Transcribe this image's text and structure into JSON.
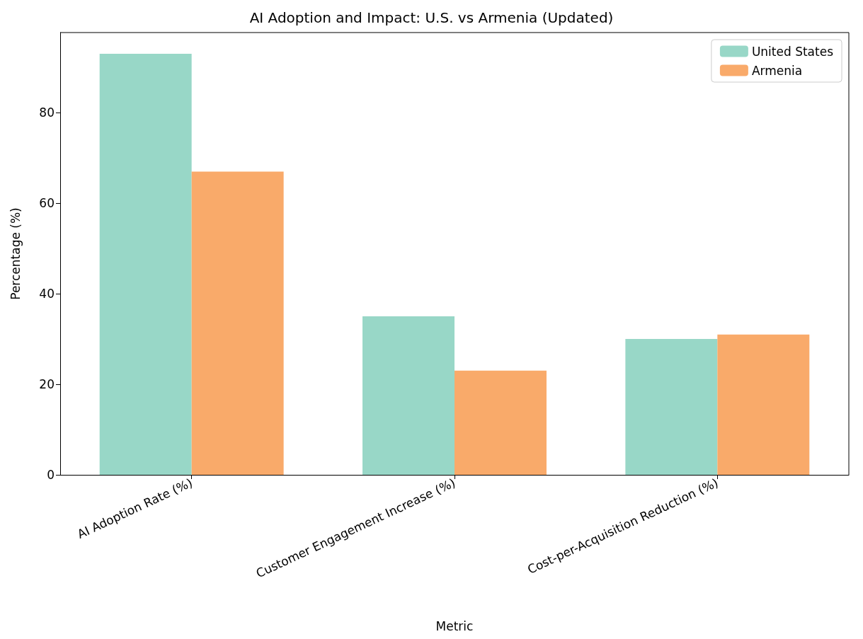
{
  "chart_data": {
    "type": "bar",
    "title": "AI Adoption and Impact: U.S. vs Armenia (Updated)",
    "xlabel": "Metric",
    "ylabel": "Percentage (%)",
    "categories": [
      "AI Adoption Rate (%)",
      "Customer Engagement Increase (%)",
      "Cost-per-Acquisition Reduction (%)"
    ],
    "series": [
      {
        "name": "United States",
        "color": "#98d7c7",
        "values": [
          93,
          35,
          30
        ]
      },
      {
        "name": "Armenia",
        "color": "#f9aa6a",
        "values": [
          67,
          23,
          31
        ]
      }
    ],
    "ylim": [
      0,
      97.7
    ],
    "yticks": [
      0,
      20,
      40,
      60,
      80
    ],
    "grid": false,
    "legend": "top right"
  }
}
